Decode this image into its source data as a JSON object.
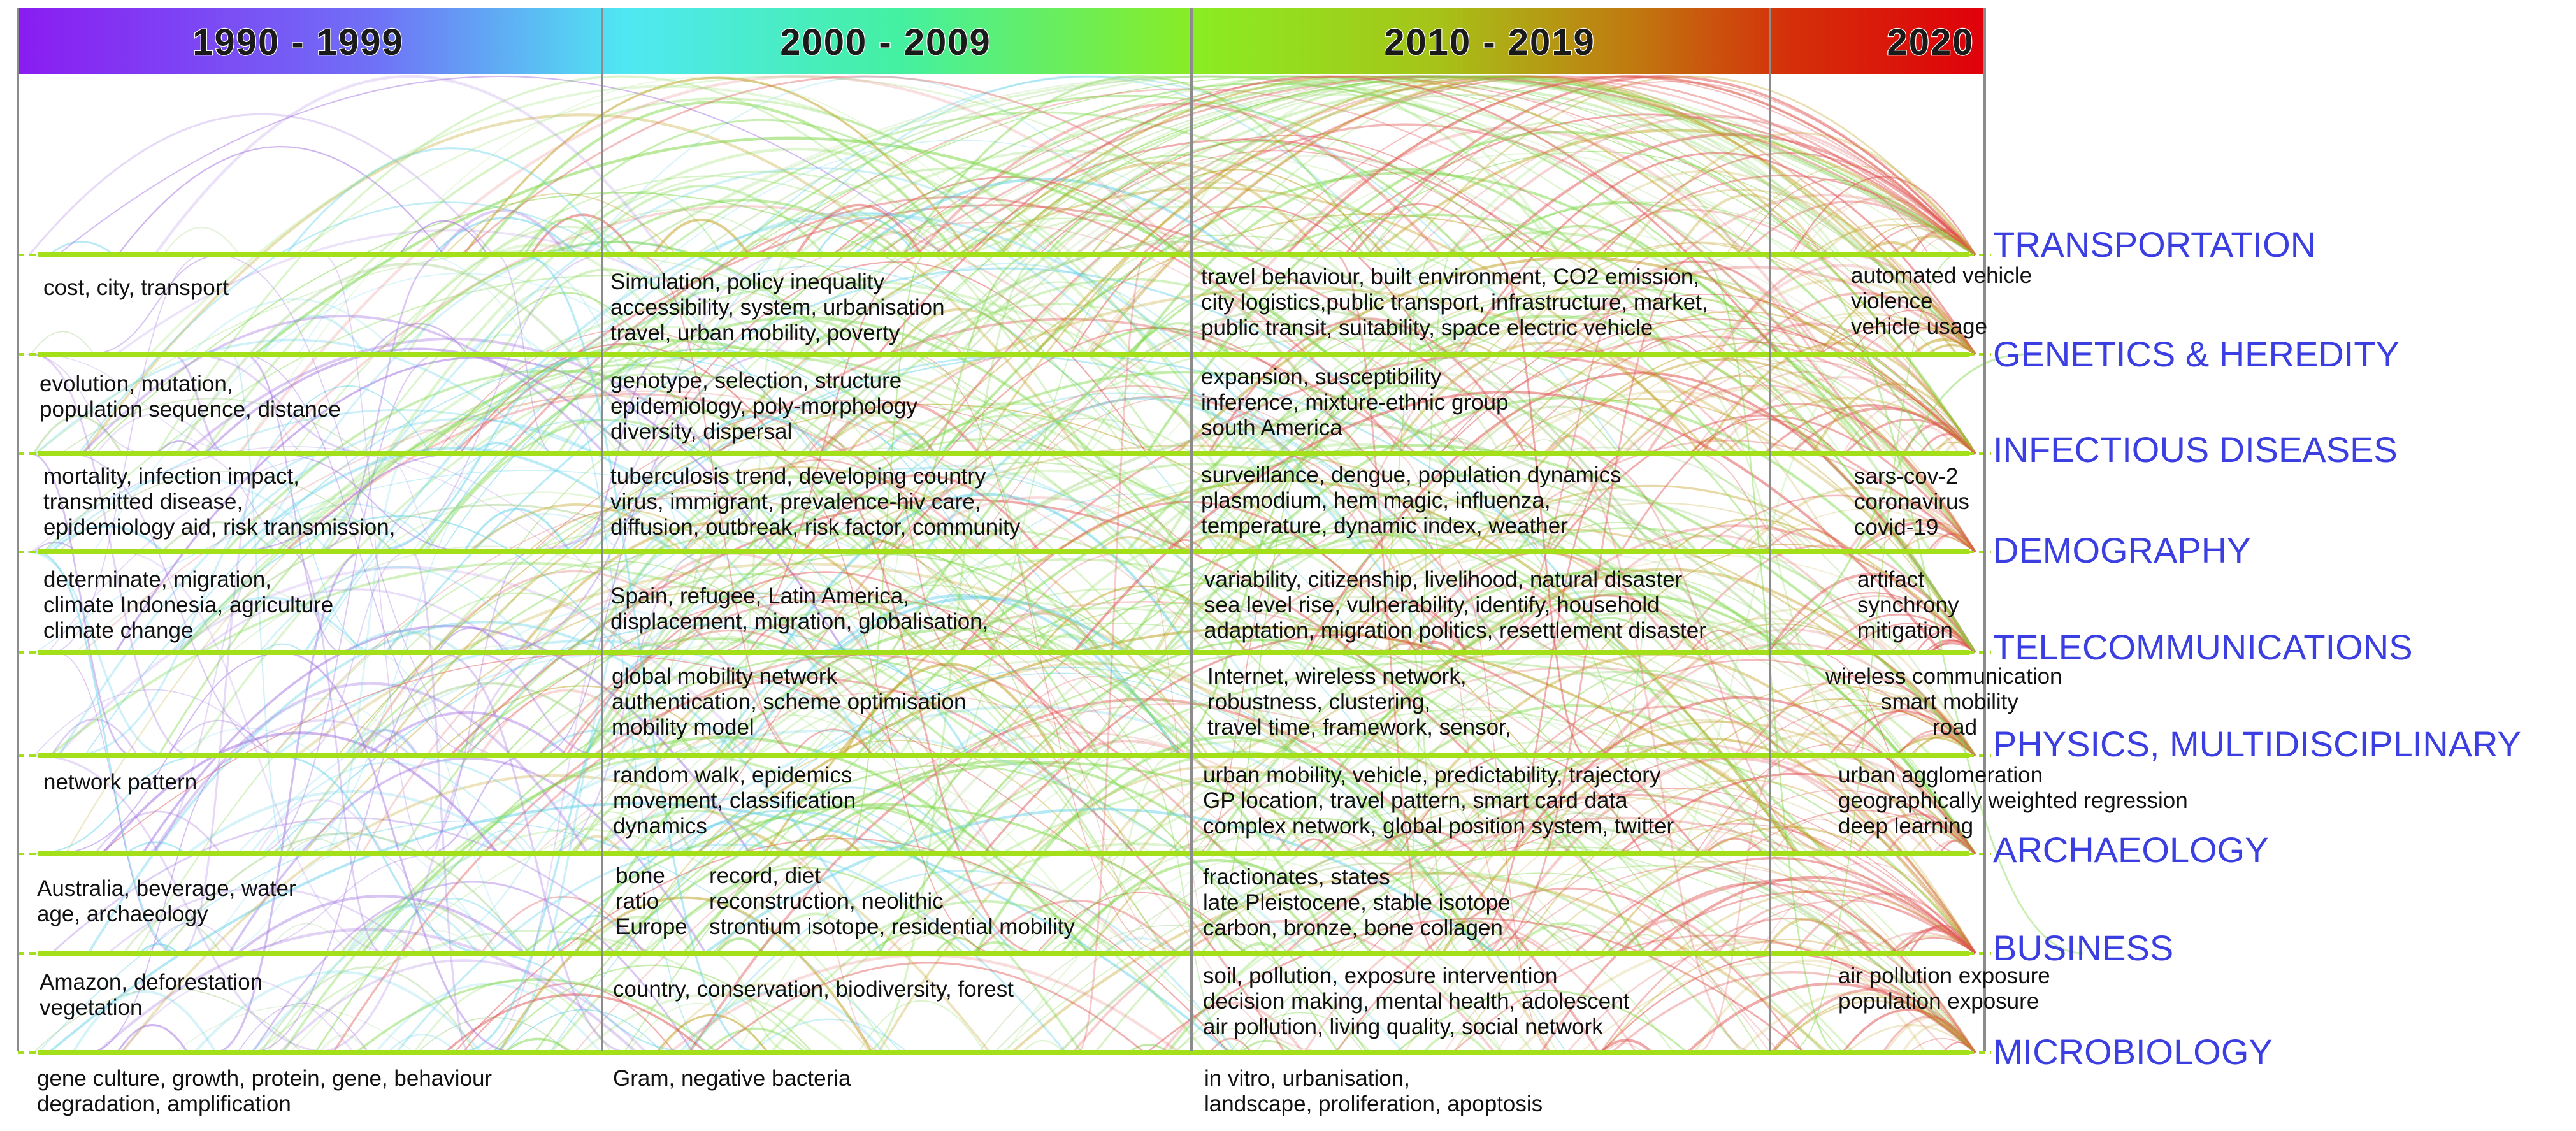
{
  "periods": [
    "1990 - 1999",
    "2000 - 2009",
    "2010 - 2019",
    "2020"
  ],
  "categories": [
    "TRANSPORTATION",
    "GENETICS & HEREDITY",
    "INFECTIOUS DISEASES",
    "DEMOGRAPHY",
    "TELECOMMUNICATIONS",
    "PHYSICS, MULTIDISCIPLINARY",
    "ARCHAEOLOGY",
    "BUSINESS",
    "MICROBIOLOGY"
  ],
  "keywords": {
    "transportation": {
      "p1990": "cost, city, transport",
      "p2000": "Simulation, policy inequality\naccessibility, system, urbanisation\ntravel, urban mobility, poverty",
      "p2010": "travel behaviour, built environment, CO2 emission,\ncity logistics,public transport, infrastructure, market,\npublic transit, suitability, space electric vehicle",
      "p2020": "automated vehicle\nviolence\nvehicle usage"
    },
    "genetics": {
      "p1990": "evolution, mutation,\npopulation sequence, distance",
      "p2000": "genotype, selection, structure\nepidemiology, poly-morphology\ndiversity, dispersal",
      "p2010": "expansion, susceptibility\ninference, mixture-ethnic group\nsouth America"
    },
    "infectious": {
      "p1990": "mortality, infection impact,\ntransmitted disease,\nepidemiology aid, risk transmission,",
      "p2000": "tuberculosis trend, developing country\nvirus, immigrant, prevalence-hiv care,\ndiffusion, outbreak, risk factor, community",
      "p2010": "surveillance, dengue, population dynamics\nplasmodium, hem magic, influenza,\ntemperature, dynamic index, weather",
      "p2020": "sars-cov-2\ncoronavirus\ncovid-19"
    },
    "demography": {
      "p1990": "determinate, migration,\nclimate Indonesia, agriculture\nclimate change",
      "p2000": "Spain, refugee, Latin America,\ndisplacement, migration, globalisation,",
      "p2010": "variability, citizenship, livelihood, natural disaster\nsea level rise, vulnerability, identify, household\nadaptation, migration politics, resettlement disaster",
      "p2020": "artifact\nsynchrony\nmitigation"
    },
    "telecom": {
      "p2000": "global mobility network\nauthentication, scheme optimisation\nmobility model",
      "p2010": "Internet, wireless network,\nrobustness, clustering,\ntravel time, framework, sensor,",
      "p2020_l1": "wireless communication",
      "p2020_l2": "smart mobility",
      "p2020_l3": "road"
    },
    "physics": {
      "p1990": "network pattern",
      "p2000": "random walk, epidemics\nmovement, classification\ndynamics",
      "p2010": "urban mobility, vehicle, predictability, trajectory\nGP location, travel pattern, smart card data\ncomplex network, global position system, twitter",
      "p2020": "urban agglomeration\ngeographically weighted regression\ndeep learning"
    },
    "archaeology": {
      "p1990": "Australia, beverage, water\nage, archaeology",
      "p2000_left": "bone\nratio\nEurope",
      "p2000_right": "record, diet\nreconstruction, neolithic\nstrontium isotope, residential mobility",
      "p2010": "fractionates, states\nlate Pleistocene, stable isotope\ncarbon, bronze, bone collagen"
    },
    "business": {
      "p1990": "Amazon, deforestation\nvegetation",
      "p2000": "country, conservation, biodiversity, forest",
      "p2010": "soil, pollution, exposure intervention\ndecision making, mental health, adolescent\nair pollution, living quality, social network",
      "p2020": "air pollution exposure\npopulation exposure"
    },
    "microbiology": {
      "p1990": "gene culture, growth, protein, gene, behaviour\ndegradation, amplification",
      "p2000": "Gram, negative bacteria",
      "p2010": "in vitro, urbanisation,\nlandscape, proliferation, apoptosis"
    }
  },
  "colors": {
    "category_label": "#3b3ee0",
    "lane_line": "#a4e01a",
    "period_divider": "#8c8c8c",
    "gradient": [
      "#8a1cf2",
      "#6f8cf6",
      "#4fe8f2",
      "#44f0a0",
      "#8aec22",
      "#a0c818",
      "#c07a10",
      "#d4300a",
      "#e0000a"
    ],
    "arc_palette": [
      "#a9d18e",
      "#7fd84a",
      "#e05050",
      "#c0a020",
      "#60d0e8",
      "#a070e0"
    ]
  }
}
